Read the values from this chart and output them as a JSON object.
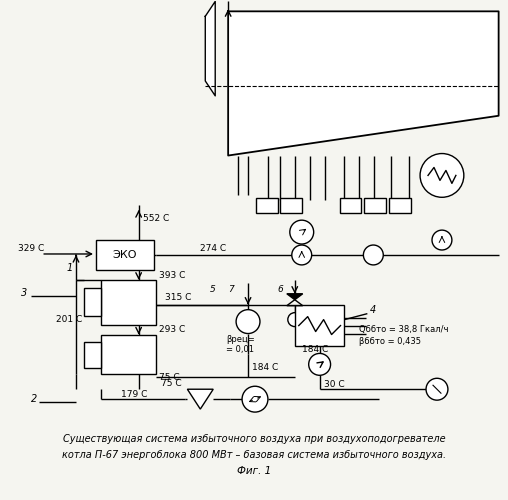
{
  "title_line1": "Существующая система избыточного воздуха при воздухоподогревателе",
  "title_line2": "котла П-67 энергоблока 800 МВт – базовая система избыточного воздуха.",
  "fig_label": "Фиг. 1",
  "eco_label": "ЭКО",
  "temp_552": "552 С",
  "temp_329": "329 С",
  "temp_274": "274 С",
  "temp_393": "393 С",
  "temp_315": "315 С",
  "temp_201": "201 С",
  "temp_293": "293 С",
  "temp_184": "184 С",
  "temp_75": "75 С",
  "temp_30": "30 С",
  "temp_179": "179 С",
  "node1": "1",
  "node2": "2",
  "node3": "3",
  "node4": "4",
  "node5": "5",
  "node6": "6",
  "node7": "7",
  "vrec": "βрец=\n= 0,01",
  "qbbto": "Qббто = 38,8 Гкал/ч",
  "bbbto": "βббто = 0,435",
  "line_color": "#000000",
  "bg_color": "#f5f5f0"
}
